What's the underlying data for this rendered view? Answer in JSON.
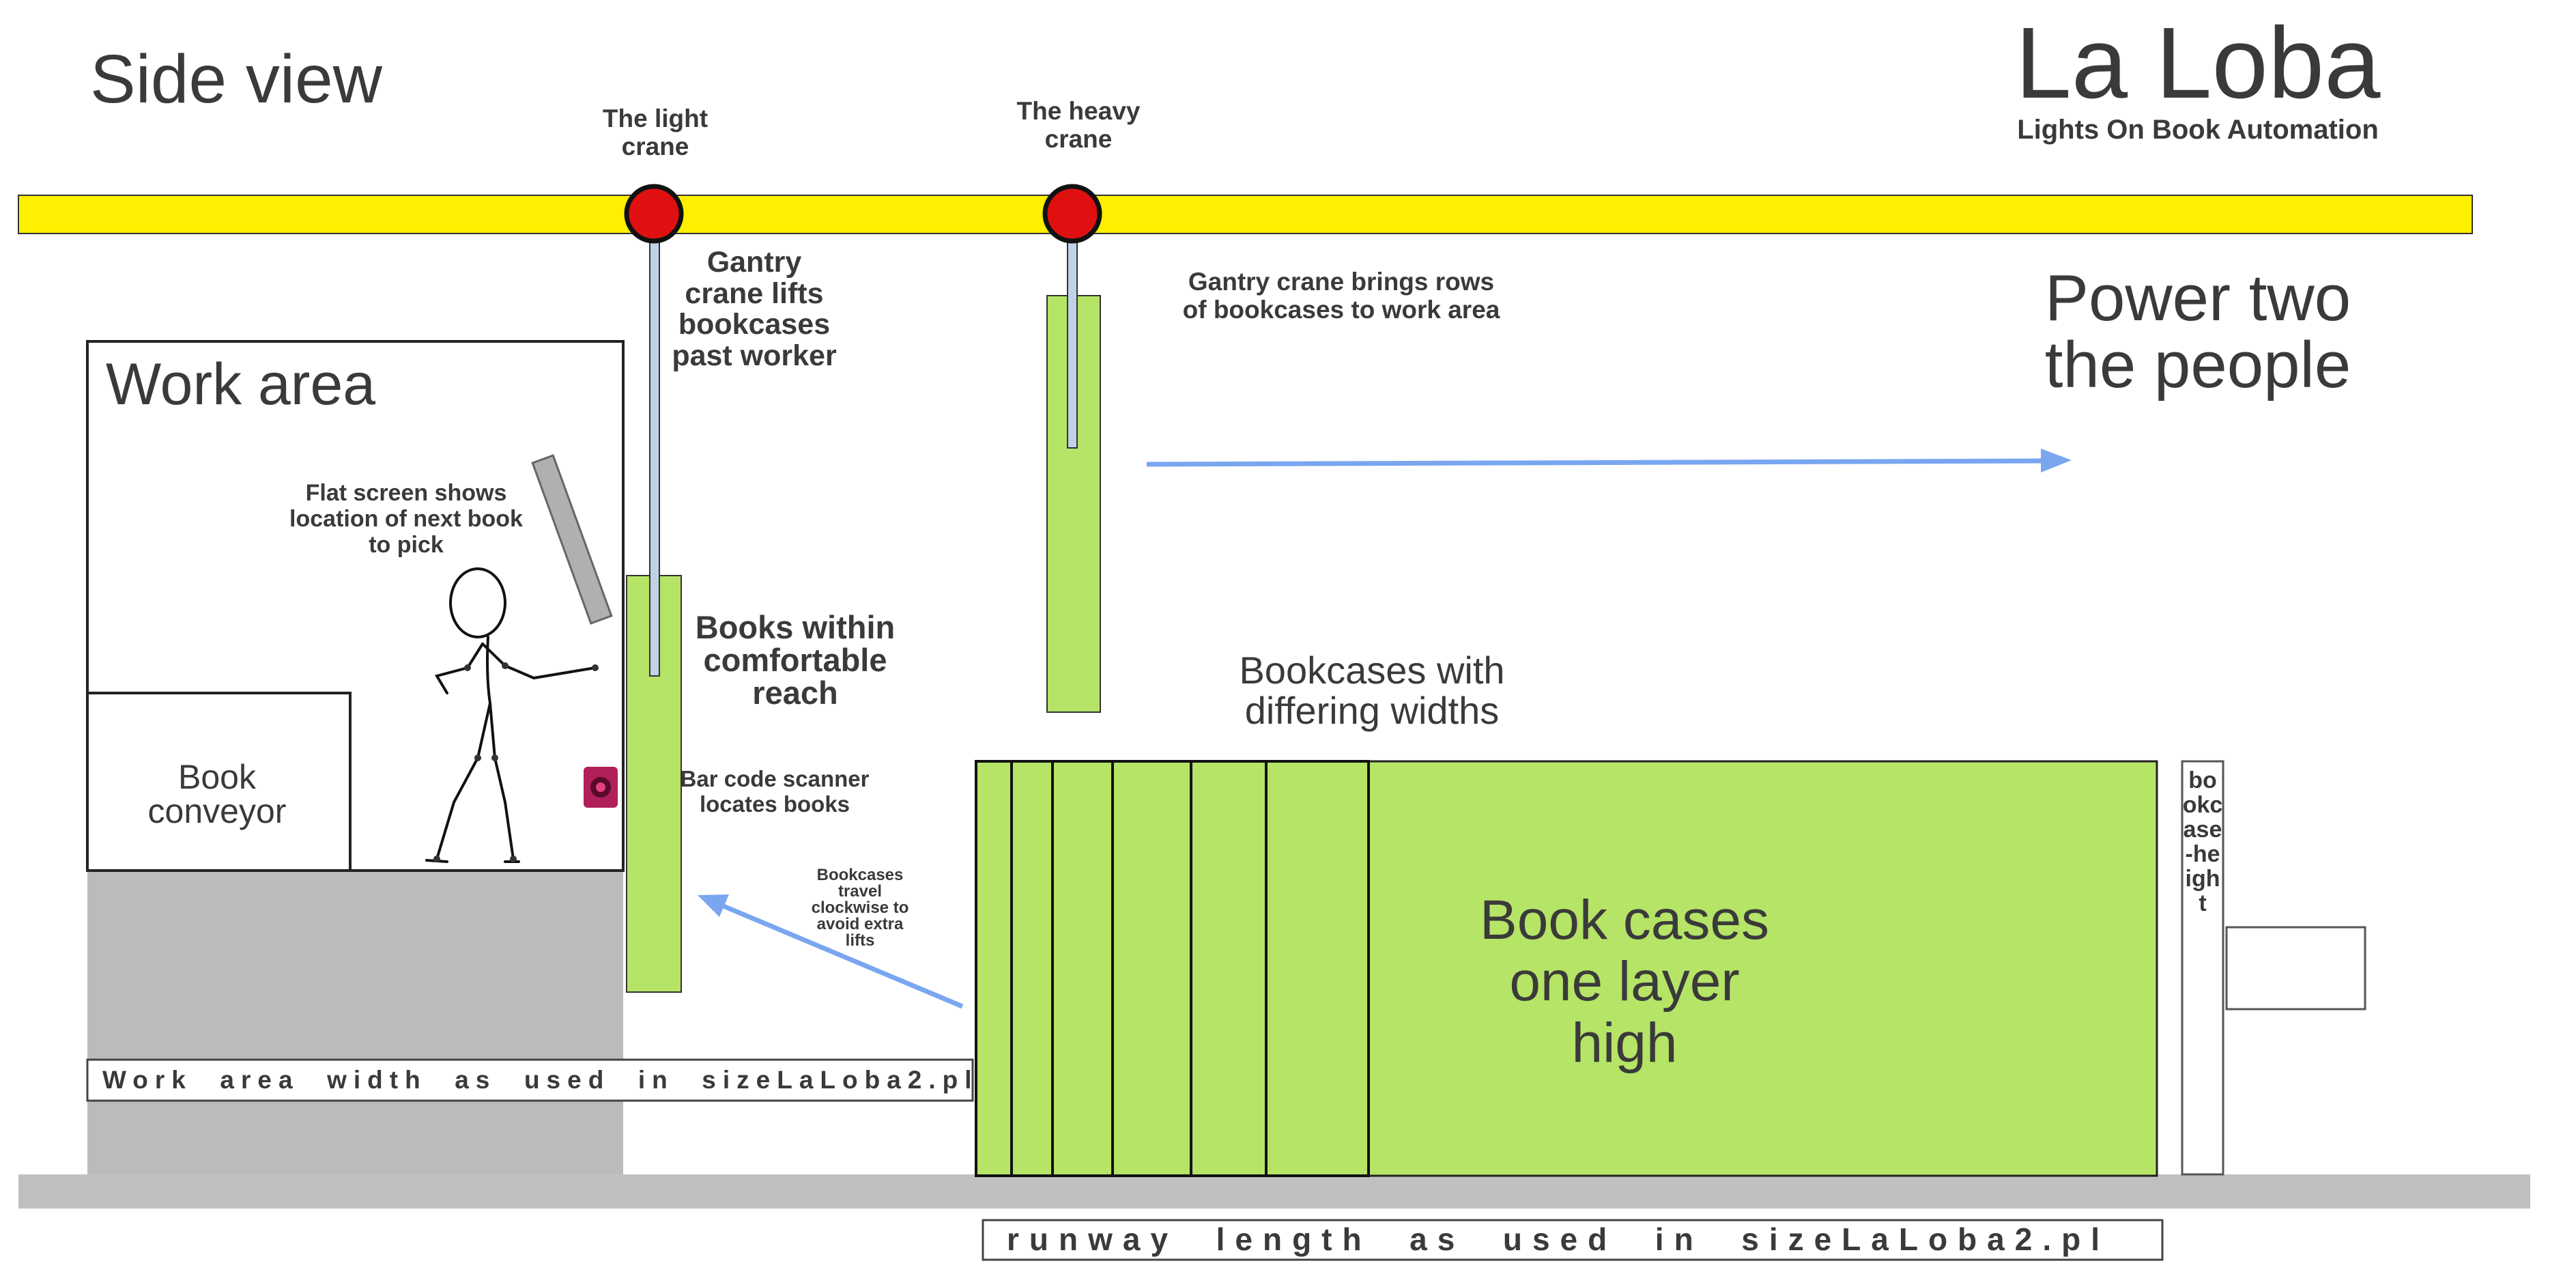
{
  "header": {
    "view_title": "Side view",
    "brand": "La Loba",
    "brand_tagline": "Lights On Book Automation",
    "slogan_line1": "Power two",
    "slogan_line2": "the people"
  },
  "cranes": {
    "light": {
      "label_line1": "The light",
      "label_line2": "crane"
    },
    "heavy": {
      "label_line1": "The heavy",
      "label_line2": "crane"
    }
  },
  "annotations": {
    "gantry_lifts": [
      "Gantry",
      "crane lifts",
      "bookcases",
      "past worker"
    ],
    "gantry_brings": [
      "Gantry crane brings rows",
      "of bookcases to work area"
    ],
    "work_area": "Work area",
    "flat_screen": [
      "Flat screen shows",
      "location of next book",
      "to pick"
    ],
    "books_reach": [
      "Books within",
      "comfortable",
      "reach"
    ],
    "book_conveyor": [
      "Book",
      "conveyor"
    ],
    "bar_code": [
      "Bar code scanner",
      "locates  books"
    ],
    "clockwise": [
      "Bookcases",
      "travel",
      "clockwise to",
      "avoid extra",
      "lifts"
    ],
    "differing_widths": [
      "Bookcases with",
      "differing widths"
    ],
    "one_layer": [
      "Book cases",
      "one layer",
      "high"
    ],
    "bookcase_height": "bookcase-height",
    "work_area_width": "Work  area  width  as  used  in  sizeLaLoba2.pl",
    "runway_length": "runway  length  as  used  in  sizeLaLoba2.pl"
  },
  "colors": {
    "rail": "#ffef00",
    "crane_dot": "#e01010",
    "bookcase": "#b5e466",
    "floor": "#c0c0c0",
    "arrow": "#7aa6f0",
    "text": "#3a3a3a"
  }
}
